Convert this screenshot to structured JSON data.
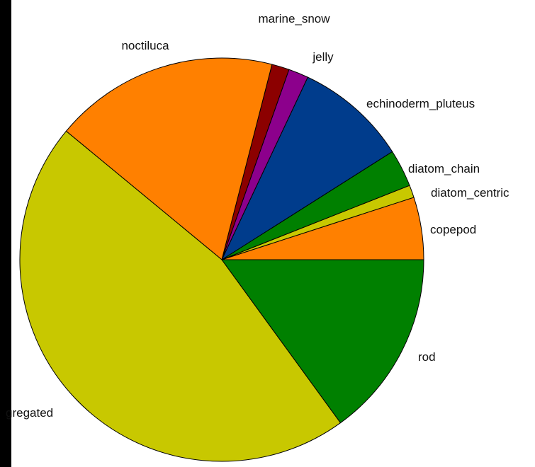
{
  "chart_data": {
    "type": "pie",
    "start_angle_deg": 0,
    "direction": "counterclockwise",
    "slices": [
      {
        "label": "copepod",
        "value": 5.0,
        "color": "#ff8000"
      },
      {
        "label": "diatom_centric",
        "value": 1.0,
        "color": "#c8c800"
      },
      {
        "label": "diatom_chain",
        "value": 3.0,
        "color": "#008000"
      },
      {
        "label": "echinoderm_pluteus",
        "value": 9.0,
        "color": "#003c8c"
      },
      {
        "label": "jelly",
        "value": 1.6,
        "color": "#8c008c"
      },
      {
        "label": "marine_snow",
        "value": 1.4,
        "color": "#8c0000"
      },
      {
        "label": "noctiluca",
        "value": 18.0,
        "color": "#ff8000"
      },
      {
        "label": "gregated",
        "value": 46.0,
        "color": "#c8c800"
      },
      {
        "label": "rod",
        "value": 15.0,
        "color": "#008000"
      }
    ]
  }
}
